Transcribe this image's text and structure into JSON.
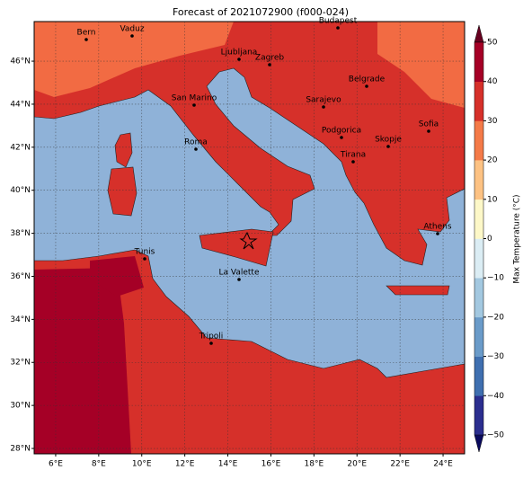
{
  "title": "Forecast of 2021072900 (f000-024)",
  "map": {
    "lonlim": [
      5,
      25
    ],
    "latlim": [
      27.75,
      47.84
    ],
    "lon_ticks": [
      {
        "value": 6,
        "label": "6°E"
      },
      {
        "value": 8,
        "label": "8°E"
      },
      {
        "value": 10,
        "label": "10°E"
      },
      {
        "value": 12,
        "label": "12°E"
      },
      {
        "value": 14,
        "label": "14°E"
      },
      {
        "value": 16,
        "label": "16°E"
      },
      {
        "value": 18,
        "label": "18°E"
      },
      {
        "value": 20,
        "label": "20°E"
      },
      {
        "value": 22,
        "label": "22°E"
      },
      {
        "value": 24,
        "label": "24°E"
      }
    ],
    "lat_ticks": [
      {
        "value": 28,
        "label": "28°N"
      },
      {
        "value": 30,
        "label": "30°N"
      },
      {
        "value": 32,
        "label": "32°N"
      },
      {
        "value": 34,
        "label": "34°N"
      },
      {
        "value": 36,
        "label": "36°N"
      },
      {
        "value": 38,
        "label": "38°N"
      },
      {
        "value": 40,
        "label": "40°N"
      },
      {
        "value": 42,
        "label": "42°N"
      },
      {
        "value": 44,
        "label": "44°N"
      },
      {
        "value": 46,
        "label": "46°N"
      }
    ],
    "cities": [
      "Bern",
      "Vaduz",
      "Budapest",
      "Ljubljana",
      "Zagreb",
      "Belgrade",
      "San Marino",
      "Sarajevo",
      "Sofia",
      "Podgorica",
      "Skopje",
      "Roma",
      "Tirana",
      "Athens",
      "Tunis",
      "La Valette",
      "Tripoli"
    ]
  },
  "colorbar": {
    "label": "Max Temperature (°C)",
    "lim": [
      -50,
      50
    ],
    "ticks": [
      {
        "value": -50,
        "label": "−50"
      },
      {
        "value": -40,
        "label": "−40"
      },
      {
        "value": -30,
        "label": "−30"
      },
      {
        "value": -20,
        "label": "−20"
      },
      {
        "value": -10,
        "label": "−10"
      },
      0,
      10,
      20,
      30,
      40,
      50
    ]
  }
}
